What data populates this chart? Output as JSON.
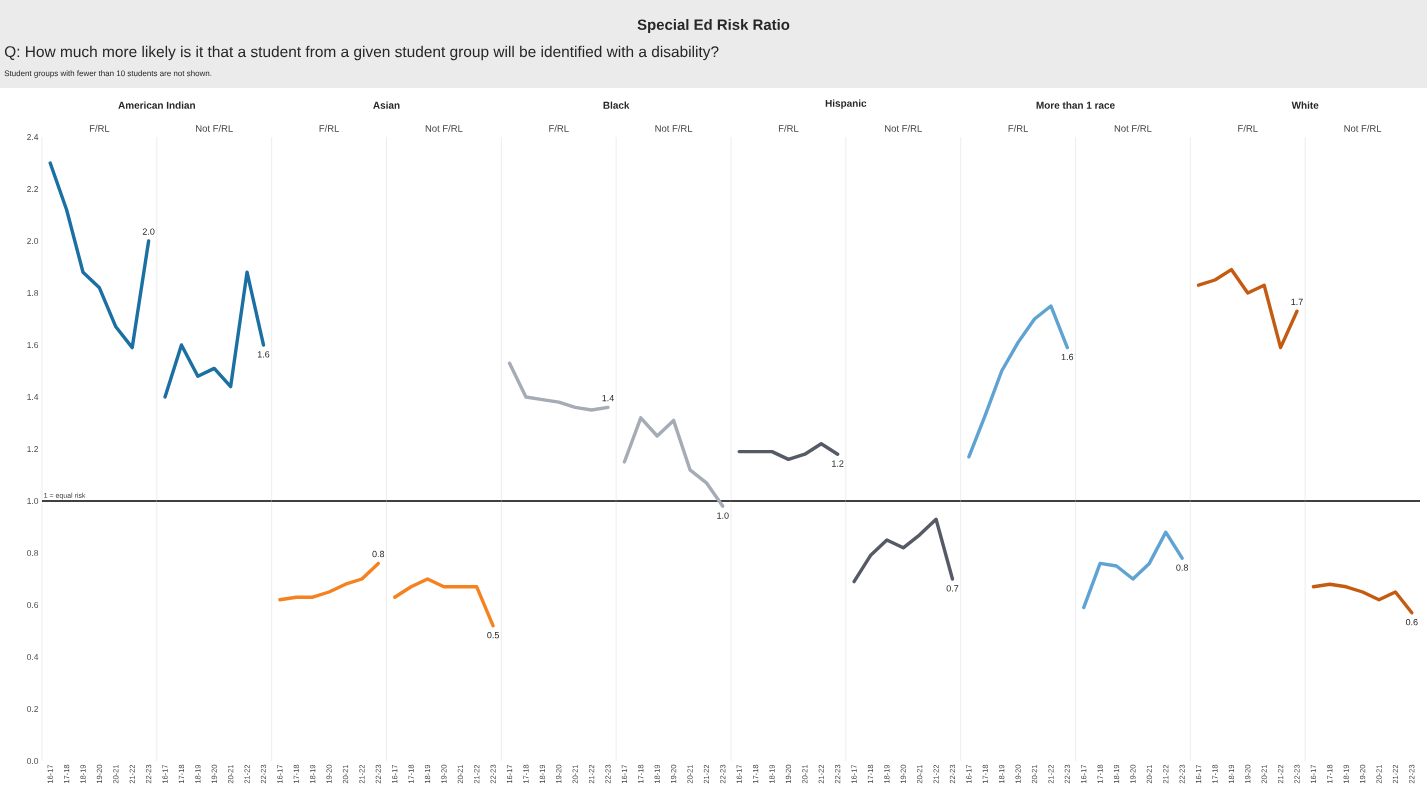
{
  "chart_data": [
    {
      "type": "line",
      "title": "American Indian",
      "subtitle": "F/RL",
      "annotations": [
        "Special Ed Risk Ratio",
        "Q: How much more likely is it that a student from a given student group will be identified with a disability?",
        "Student groups with fewer than 10 students are not shown."
      ],
      "categories": [
        "16-17",
        "17-18",
        "18-19",
        "19-20",
        "20-21",
        "21-22",
        "22-23"
      ],
      "values": [
        2.3,
        2.12,
        1.88,
        1.82,
        1.67,
        1.59,
        2.0
      ],
      "value_labels": [
        null,
        null,
        null,
        null,
        null,
        null,
        "2.0"
      ],
      "color": "#1a6fa3",
      "ylim": [
        0,
        2.4
      ],
      "yticks": [
        {
          "value": 0,
          "label": "0.0"
        },
        {
          "value": 0.2,
          "label": "0.2"
        },
        {
          "value": 0.4,
          "label": "0.4"
        },
        {
          "value": 0.6,
          "label": "0.6"
        },
        {
          "value": 0.8,
          "label": "0.8"
        },
        {
          "value": 1,
          "label": "1.0"
        },
        {
          "value": 1.2,
          "label": "1.2"
        },
        {
          "value": 1.4,
          "label": "1.4"
        },
        {
          "value": 1.6,
          "label": "1.6"
        },
        {
          "value": 1.8,
          "label": "1.8"
        },
        {
          "value": 2,
          "label": "2.0"
        },
        {
          "value": 2.2,
          "label": "2.2"
        },
        {
          "value": 2.4,
          "label": "2.4"
        }
      ],
      "ref_lines": [
        {
          "axis": "y",
          "value": 1,
          "label": "1 = equal risk"
        }
      ]
    },
    {
      "type": "line",
      "subtitle": "Not F/RL",
      "categories": [
        "16-17",
        "17-18",
        "18-19",
        "19-20",
        "20-21",
        "21-22",
        "22-23"
      ],
      "values": [
        1.4,
        1.6,
        1.48,
        1.51,
        1.44,
        1.88,
        1.6
      ],
      "value_labels": [
        null,
        null,
        null,
        null,
        null,
        null,
        "1.6"
      ],
      "color": "#1a6fa3",
      "ylim": [
        0,
        2.4
      ],
      "tick_labels": "x",
      "ref_lines": [
        {
          "axis": "y",
          "value": 1
        }
      ]
    },
    {
      "type": "line",
      "title": "Asian",
      "subtitle": "F/RL",
      "categories": [
        "16-17",
        "17-18",
        "18-19",
        "19-20",
        "20-21",
        "21-22",
        "22-23"
      ],
      "values": [
        0.62,
        0.63,
        0.63,
        0.65,
        0.68,
        0.7,
        0.76
      ],
      "value_labels": [
        null,
        null,
        null,
        null,
        null,
        null,
        "0.8"
      ],
      "color": "#f5821f",
      "ylim": [
        0,
        2.4
      ],
      "tick_labels": "x",
      "ref_lines": [
        {
          "axis": "y",
          "value": 1
        }
      ]
    },
    {
      "type": "line",
      "subtitle": "Not F/RL",
      "categories": [
        "16-17",
        "17-18",
        "18-19",
        "19-20",
        "20-21",
        "21-22",
        "22-23"
      ],
      "values": [
        0.63,
        0.67,
        0.7,
        0.67,
        0.67,
        0.67,
        0.52
      ],
      "value_labels": [
        null,
        null,
        null,
        null,
        null,
        null,
        "0.5"
      ],
      "color": "#f5821f",
      "ylim": [
        0,
        2.4
      ],
      "tick_labels": "x",
      "ref_lines": [
        {
          "axis": "y",
          "value": 1
        }
      ]
    },
    {
      "type": "line",
      "title": "Black",
      "subtitle": "F/RL",
      "categories": [
        "16-17",
        "17-18",
        "18-19",
        "19-20",
        "20-21",
        "21-22",
        "22-23"
      ],
      "values": [
        1.53,
        1.4,
        1.39,
        1.38,
        1.36,
        1.35,
        1.36
      ],
      "value_labels": [
        null,
        null,
        null,
        null,
        null,
        null,
        "1.4"
      ],
      "color": "#a5acb5",
      "ylim": [
        0,
        2.4
      ],
      "tick_labels": "x",
      "ref_lines": [
        {
          "axis": "y",
          "value": 1
        }
      ]
    },
    {
      "type": "line",
      "subtitle": "Not F/RL",
      "categories": [
        "16-17",
        "17-18",
        "18-19",
        "19-20",
        "20-21",
        "21-22",
        "22-23"
      ],
      "values": [
        1.15,
        1.32,
        1.25,
        1.31,
        1.12,
        1.07,
        0.98
      ],
      "value_labels": [
        null,
        null,
        null,
        null,
        null,
        null,
        "1.0"
      ],
      "color": "#a5acb5",
      "ylim": [
        0,
        2.4
      ],
      "tick_labels": "x",
      "ref_lines": [
        {
          "axis": "y",
          "value": 1
        }
      ]
    },
    {
      "type": "line",
      "title": "Hispanic",
      "subtitle": "F/RL",
      "categories": [
        "16-17",
        "17-18",
        "18-19",
        "19-20",
        "20-21",
        "21-22",
        "22-23"
      ],
      "values": [
        1.19,
        1.19,
        1.19,
        1.16,
        1.18,
        1.22,
        1.18
      ],
      "value_labels": [
        null,
        null,
        null,
        null,
        null,
        null,
        "1.2"
      ],
      "color": "#555b66",
      "ylim": [
        0,
        2.4
      ],
      "tick_labels": "x",
      "ref_lines": [
        {
          "axis": "y",
          "value": 1
        }
      ]
    },
    {
      "type": "line",
      "subtitle": "Not F/RL",
      "categories": [
        "16-17",
        "17-18",
        "18-19",
        "19-20",
        "20-21",
        "21-22",
        "22-23"
      ],
      "values": [
        0.69,
        0.79,
        0.85,
        0.82,
        0.87,
        0.93,
        0.7
      ],
      "value_labels": [
        null,
        null,
        null,
        null,
        null,
        null,
        "0.7"
      ],
      "color": "#555b66",
      "ylim": [
        0,
        2.4
      ],
      "tick_labels": "x",
      "ref_lines": [
        {
          "axis": "y",
          "value": 1
        }
      ]
    },
    {
      "type": "line",
      "title": "More than 1 race",
      "subtitle": "F/RL",
      "categories": [
        "16-17",
        "17-18",
        "18-19",
        "19-20",
        "20-21",
        "21-22",
        "22-23"
      ],
      "values": [
        1.17,
        1.33,
        1.5,
        1.61,
        1.7,
        1.75,
        1.59
      ],
      "value_labels": [
        null,
        null,
        null,
        null,
        null,
        null,
        "1.6"
      ],
      "color": "#5ea3d2",
      "ylim": [
        0,
        2.4
      ],
      "tick_labels": "x",
      "ref_lines": [
        {
          "axis": "y",
          "value": 1
        }
      ]
    },
    {
      "type": "line",
      "subtitle": "Not F/RL",
      "categories": [
        "16-17",
        "17-18",
        "18-19",
        "19-20",
        "20-21",
        "21-22",
        "22-23"
      ],
      "values": [
        0.59,
        0.76,
        0.75,
        0.7,
        0.76,
        0.88,
        0.78
      ],
      "value_labels": [
        null,
        null,
        null,
        null,
        null,
        null,
        "0.8"
      ],
      "color": "#5ea3d2",
      "ylim": [
        0,
        2.4
      ],
      "tick_labels": "x",
      "ref_lines": [
        {
          "axis": "y",
          "value": 1
        }
      ]
    },
    {
      "type": "line",
      "title": "White",
      "subtitle": "F/RL",
      "categories": [
        "16-17",
        "17-18",
        "18-19",
        "19-20",
        "20-21",
        "21-22",
        "22-23"
      ],
      "values": [
        1.83,
        1.85,
        1.89,
        1.8,
        1.83,
        1.59,
        1.73
      ],
      "value_labels": [
        null,
        null,
        null,
        null,
        null,
        null,
        "1.7"
      ],
      "color": "#c55a11",
      "ylim": [
        0,
        2.4
      ],
      "tick_labels": "x",
      "ref_lines": [
        {
          "axis": "y",
          "value": 1
        }
      ]
    },
    {
      "type": "line",
      "subtitle": "Not F/RL",
      "categories": [
        "16-17",
        "17-18",
        "18-19",
        "19-20",
        "20-21",
        "21-22",
        "22-23"
      ],
      "values": [
        0.67,
        0.68,
        0.67,
        0.65,
        0.62,
        0.65,
        0.57
      ],
      "value_labels": [
        null,
        null,
        null,
        null,
        null,
        null,
        "0.6"
      ],
      "color": "#c55a11",
      "ylim": [
        0,
        2.4
      ],
      "tick_labels": "x",
      "ref_lines": [
        {
          "axis": "y",
          "value": 1
        }
      ]
    }
  ]
}
